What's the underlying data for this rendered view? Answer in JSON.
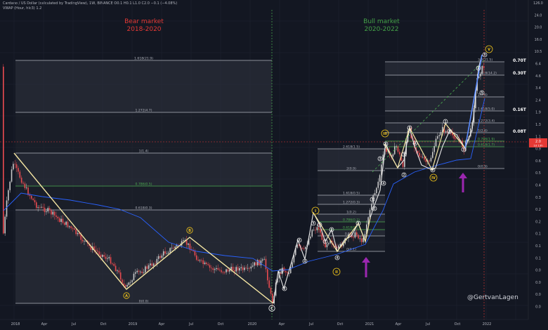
{
  "header": {
    "symbol_line": "Cardano / US Dollar (calculated by TradingView), 1W, BINANCE  O0.1  H0.1  L1.0  C2.0  −0.1 (−4.08%)",
    "indicator_line": "VWAP (Hour, hlc3)  1.2"
  },
  "annotations": {
    "bear_title": "Bear market",
    "bear_years": "2018-2020",
    "bull_title": "Bull market",
    "bull_years": "2020-2022",
    "watermark": "@GertvanLagen"
  },
  "colors": {
    "background": "#131722",
    "bear_text": "#e53935",
    "bull_text": "#43a047",
    "candle_up": "#c8c8c8",
    "candle_down": "#e84a4f",
    "wave_bear": "#f5e6a3",
    "wave_bull": "#e8e8e8",
    "vwap": "#2962ff",
    "fib_line": "#b2b5be",
    "fib_green": "#4caf50",
    "arrow": "#9c27b0",
    "wave_label": "#f0c419"
  },
  "chart_data": {
    "type": "candlestick",
    "title": "Cardano / US Dollar, 1W",
    "x_axis": {
      "ticks": [
        "2018",
        "Apr",
        "Jul",
        "Oct",
        "2019",
        "Apr",
        "Jul",
        "Oct",
        "2020",
        "Apr",
        "Jul",
        "Oct",
        "2021",
        "Apr",
        "Jul",
        "Oct",
        "2022"
      ]
    },
    "y_axis": {
      "scale": "log",
      "ticks": [
        "126.0",
        "24.0",
        "20.0",
        "16.0",
        "10.5",
        "6.4",
        "4.6",
        "3.4",
        "2.4",
        "1.9",
        "1.3",
        "1.1",
        "0.9",
        "0.6",
        "0.5",
        "0.4",
        "0.3",
        "0.2",
        "0.2",
        "0.1",
        "0.1",
        "0.1",
        "0.0",
        "0.0",
        "0.0",
        "0.0"
      ],
      "last_price": "2.0",
      "last_price_sub": "1d 13h"
    },
    "price_targets": [
      "0.70T",
      "0.30T",
      "0.16T",
      "0.08T"
    ],
    "fib_bear": [
      {
        "label": "1.618(21.9)",
        "color": "white"
      },
      {
        "label": "1.272(4.7)",
        "color": "white"
      },
      {
        "label": "1(1.4)",
        "color": "white"
      },
      {
        "label": "0.786(0.5)",
        "color": "green"
      },
      {
        "label": "0.618(0.3)",
        "color": "white"
      },
      {
        "label": "0(0.0)",
        "color": "white"
      }
    ],
    "fib_bull1": [
      {
        "label": "2.618(1.5)",
        "color": "white"
      },
      {
        "label": "2(0.9)",
        "color": "white"
      },
      {
        "label": "1.618(0.5)",
        "color": "white"
      },
      {
        "label": "1.272(0.3)",
        "color": "white"
      },
      {
        "label": "1(0.2)",
        "color": "white"
      },
      {
        "label": "0.786(0.2)",
        "color": "green"
      },
      {
        "label": "0.618(0.2)",
        "color": "green"
      },
      {
        "label": "0.5(0.1)",
        "color": "white"
      },
      {
        "label": "0(0.1)",
        "color": "white"
      }
    ],
    "fib_bull2": [
      {
        "label": "3.2(21.5)",
        "color": "white"
      },
      {
        "label": "2.618(14.2)",
        "color": "white"
      },
      {
        "label": "2(7.6)",
        "color": "white"
      },
      {
        "label": "1.618(5.0)",
        "color": "white"
      },
      {
        "label": "1.272(3.4)",
        "color": "white"
      },
      {
        "label": "1(2.6)",
        "color": "white"
      },
      {
        "label": "0.786(1.9)",
        "color": "green"
      },
      {
        "label": "0.618(1.7)",
        "color": "green"
      },
      {
        "label": "0(0.9)",
        "color": "white"
      }
    ],
    "bear_wave_labels": [
      "A",
      "B",
      "C"
    ],
    "bull_major_labels": [
      "I",
      "II",
      "III",
      "IV",
      "V"
    ],
    "bull_minor_labels": [
      "1",
      "2",
      "3",
      "4",
      "5"
    ]
  }
}
